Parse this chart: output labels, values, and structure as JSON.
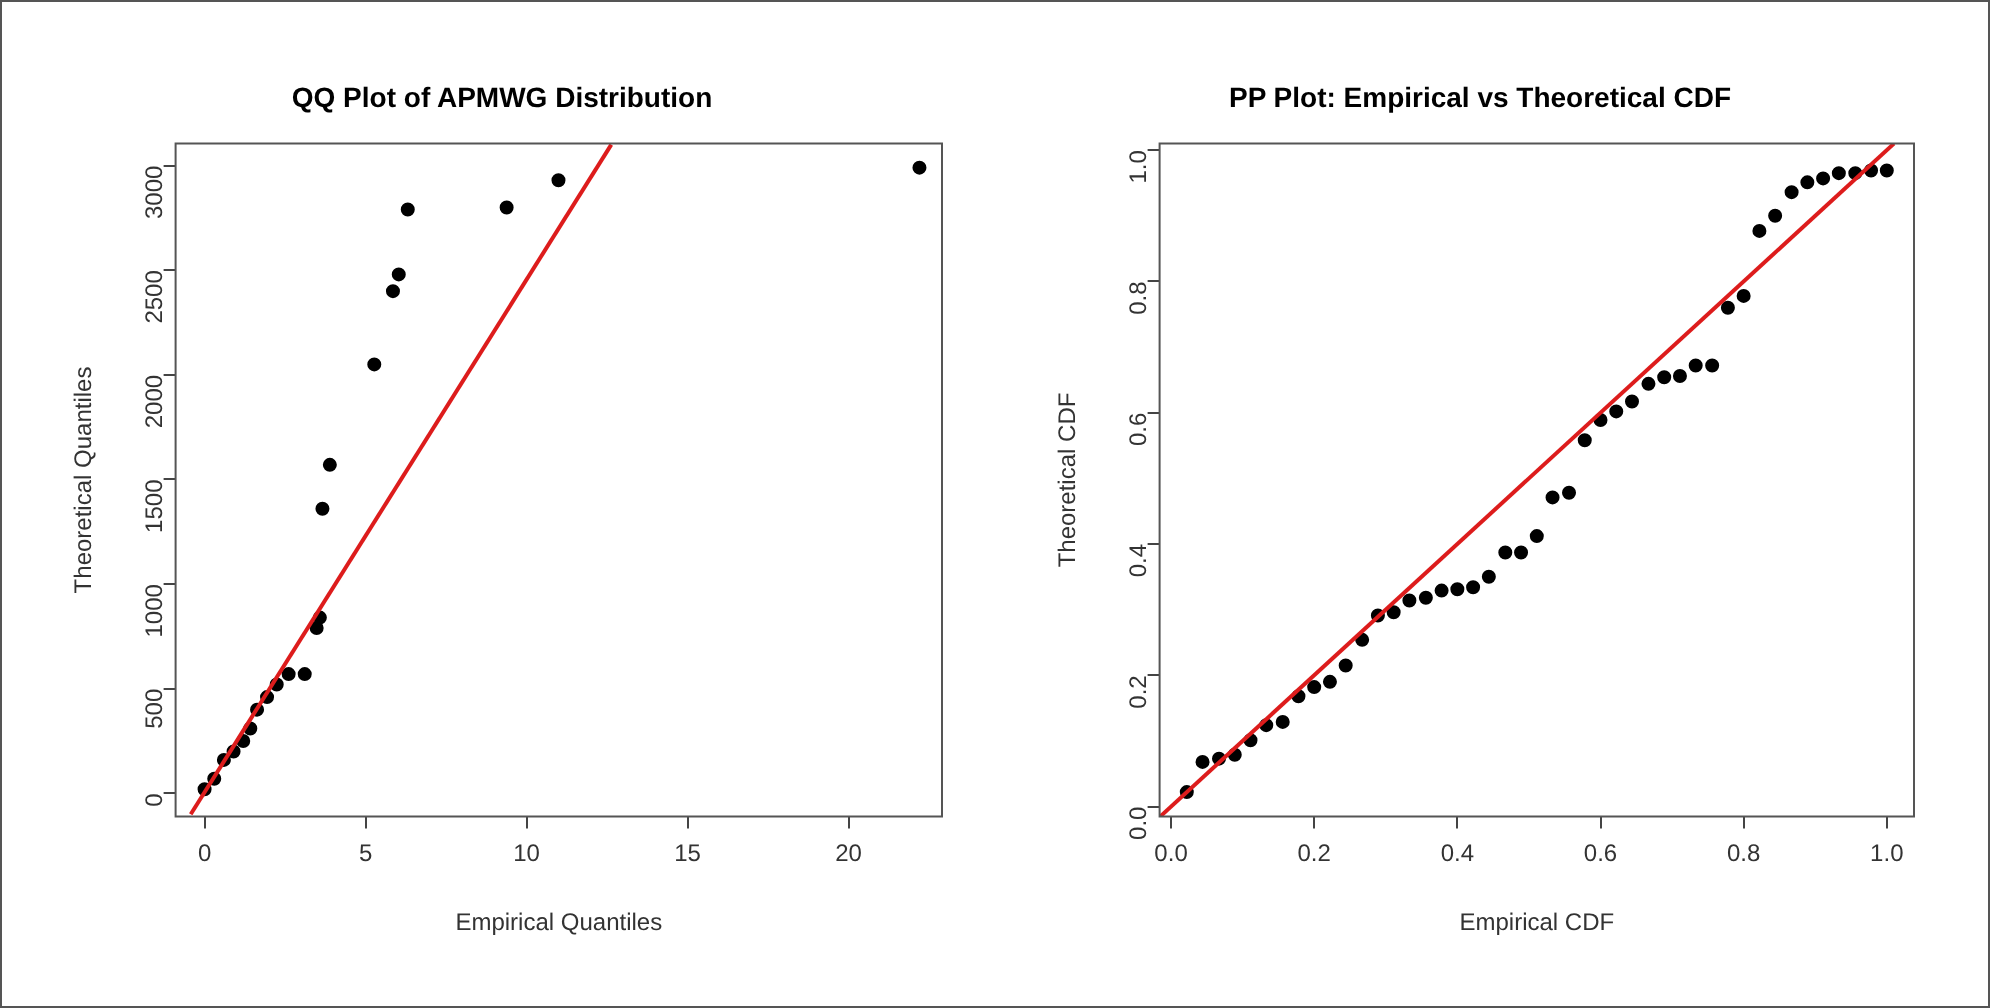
{
  "chart_data": [
    {
      "type": "scatter",
      "title": "QQ Plot of APMWG Distribution",
      "xlabel": "Empirical Quantiles",
      "ylabel": "Theoretical Quantiles",
      "xlim": [
        -0.9,
        22.9
      ],
      "ylim": [
        -110,
        3105
      ],
      "xticks": [
        0,
        5,
        10,
        15,
        20
      ],
      "yticks": [
        0,
        500,
        1000,
        1500,
        2000,
        2500,
        3000
      ],
      "series": [
        {
          "type": "scatter",
          "marker": "circle",
          "color": "#000000",
          "x": [
            0.0,
            0.3,
            0.6,
            0.9,
            1.2,
            1.42,
            1.63,
            1.94,
            2.24,
            2.61,
            3.11,
            3.48,
            3.58,
            3.66,
            3.89,
            5.27,
            5.85,
            6.03,
            6.31,
            9.38,
            10.99,
            22.2
          ],
          "values": [
            20,
            70,
            160,
            200,
            250,
            310,
            400,
            460,
            520,
            570,
            570,
            790,
            840,
            1360,
            1570,
            2050,
            2400,
            2480,
            2790,
            2800,
            2930,
            2990
          ]
        },
        {
          "type": "line",
          "marker": "none",
          "color": "#dd1c1c",
          "x": [
            -0.43,
            12.63
          ],
          "values": [
            -100,
            3100
          ]
        }
      ]
    },
    {
      "type": "scatter",
      "title": "PP Plot: Empirical vs Theoretical CDF",
      "xlabel": "Empirical CDF",
      "ylabel": "Theoretical CDF",
      "xlim": [
        -0.016,
        1.038
      ],
      "ylim": [
        -0.015,
        1.01
      ],
      "xticks": [
        {
          "value": 0,
          "label": "0.0"
        },
        0.2,
        0.4,
        0.6,
        0.8,
        {
          "value": 1,
          "label": "1.0"
        }
      ],
      "yticks": [
        {
          "value": 0,
          "label": "0.0"
        },
        0.2,
        0.4,
        0.6,
        0.8,
        {
          "value": 1,
          "label": "1.0"
        }
      ],
      "series": [
        {
          "type": "scatter",
          "marker": "circle",
          "color": "#000000",
          "x": [
            0.022,
            0.044,
            0.067,
            0.089,
            0.111,
            0.133,
            0.156,
            0.178,
            0.2,
            0.222,
            0.244,
            0.267,
            0.289,
            0.311,
            0.333,
            0.356,
            0.378,
            0.4,
            0.422,
            0.444,
            0.467,
            0.489,
            0.511,
            0.533,
            0.556,
            0.578,
            0.6,
            0.622,
            0.644,
            0.667,
            0.689,
            0.711,
            0.733,
            0.756,
            0.778,
            0.8,
            0.822,
            0.844,
            0.867,
            0.889,
            0.911,
            0.933,
            0.956,
            0.978,
            1.0
          ],
          "values": [
            0.022,
            0.068,
            0.073,
            0.079,
            0.101,
            0.124,
            0.129,
            0.168,
            0.182,
            0.19,
            0.215,
            0.254,
            0.291,
            0.296,
            0.314,
            0.318,
            0.329,
            0.331,
            0.334,
            0.35,
            0.387,
            0.387,
            0.412,
            0.471,
            0.478,
            0.558,
            0.589,
            0.602,
            0.617,
            0.644,
            0.654,
            0.656,
            0.672,
            0.672,
            0.76,
            0.778,
            0.877,
            0.9,
            0.936,
            0.951,
            0.957,
            0.965,
            0.965,
            0.969,
            0.969
          ]
        },
        {
          "type": "line",
          "marker": "none",
          "color": "#dd1c1c",
          "x": [
            -0.015,
            1.01
          ],
          "values": [
            -0.015,
            1.01
          ]
        }
      ]
    }
  ]
}
